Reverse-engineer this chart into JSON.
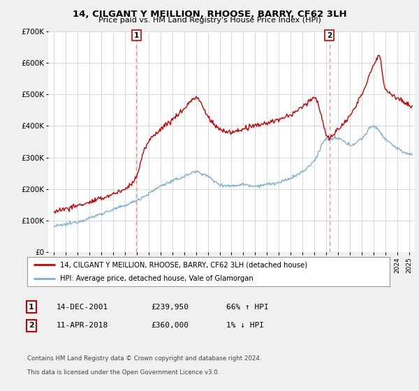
{
  "title": "14, CILGANT Y MEILLION, RHOOSE, BARRY, CF62 3LH",
  "subtitle": "Price paid vs. HM Land Registry's House Price Index (HPI)",
  "ylim": [
    0,
    700000
  ],
  "yticks": [
    0,
    100000,
    200000,
    300000,
    400000,
    500000,
    600000,
    700000
  ],
  "ytick_labels": [
    "£0",
    "£100K",
    "£200K",
    "£300K",
    "£400K",
    "£500K",
    "£600K",
    "£700K"
  ],
  "xlim_start": 1994.5,
  "xlim_end": 2025.5,
  "xtick_years": [
    1995,
    1996,
    1997,
    1998,
    1999,
    2000,
    2001,
    2002,
    2003,
    2004,
    2005,
    2006,
    2007,
    2008,
    2009,
    2010,
    2011,
    2012,
    2013,
    2014,
    2015,
    2016,
    2017,
    2018,
    2019,
    2020,
    2021,
    2022,
    2023,
    2024,
    2025
  ],
  "sale1_date": 2001.96,
  "sale1_price": 239950,
  "sale2_date": 2018.28,
  "sale2_price": 360000,
  "legend_line1": "14, CILGANT Y MEILLION, RHOOSE, BARRY, CF62 3LH (detached house)",
  "legend_line2": "HPI: Average price, detached house, Vale of Glamorgan",
  "table_row1_num": "1",
  "table_row1_date": "14-DEC-2001",
  "table_row1_price": "£239,950",
  "table_row1_hpi": "66% ↑ HPI",
  "table_row2_num": "2",
  "table_row2_date": "11-APR-2018",
  "table_row2_price": "£360,000",
  "table_row2_hpi": "1% ↓ HPI",
  "footer1": "Contains HM Land Registry data © Crown copyright and database right 2024.",
  "footer2": "This data is licensed under the Open Government Licence v3.0.",
  "sale_color": "#cc0000",
  "hpi_color": "#7bafd4",
  "vline_color": "#ff8888",
  "background_color": "#f0f0f0",
  "plot_bg_color": "#ffffff",
  "grid_color": "#cccccc",
  "hpi_anchors_x": [
    1995,
    1996,
    1997,
    1998,
    1999,
    2000,
    2001,
    2002,
    2003,
    2004,
    2005,
    2006,
    2007,
    2008,
    2009,
    2010,
    2011,
    2012,
    2013,
    2014,
    2015,
    2016,
    2017,
    2018,
    2019,
    2020,
    2021,
    2022,
    2023,
    2024,
    2025
  ],
  "hpi_anchors_y": [
    82000,
    88000,
    97000,
    108000,
    122000,
    135000,
    148000,
    165000,
    185000,
    210000,
    225000,
    240000,
    255000,
    240000,
    215000,
    210000,
    215000,
    210000,
    215000,
    220000,
    235000,
    255000,
    290000,
    358000,
    360000,
    340000,
    360000,
    400000,
    360000,
    330000,
    310000
  ],
  "prop_anchors_x": [
    1995,
    1996,
    1997,
    1998,
    1999,
    2000,
    2001,
    2001.96,
    2002.5,
    2003,
    2004,
    2005,
    2006,
    2007,
    2008,
    2009,
    2010,
    2011,
    2012,
    2013,
    2014,
    2015,
    2016,
    2017,
    2018.28,
    2019,
    2020,
    2021,
    2022,
    2022.5,
    2023,
    2024,
    2025
  ],
  "prop_anchors_y": [
    130000,
    138000,
    148000,
    158000,
    170000,
    185000,
    200000,
    239950,
    310000,
    350000,
    390000,
    420000,
    455000,
    490000,
    430000,
    390000,
    380000,
    390000,
    400000,
    410000,
    420000,
    435000,
    460000,
    490000,
    360000,
    390000,
    430000,
    500000,
    590000,
    620000,
    520000,
    490000,
    465000
  ]
}
